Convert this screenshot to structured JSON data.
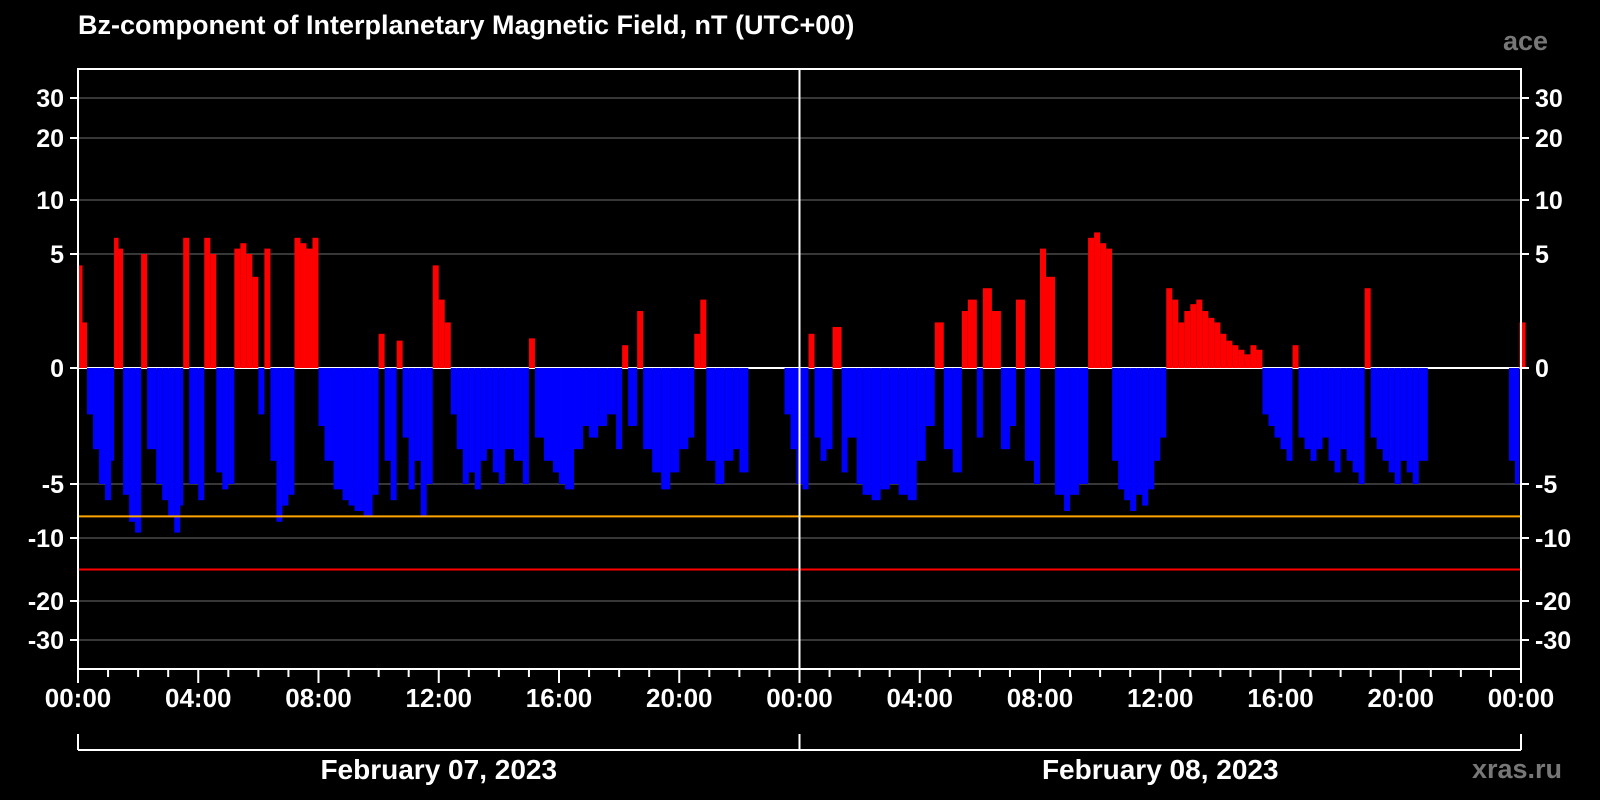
{
  "chart_data": {
    "type": "bar",
    "title": "Bz-component of Interplanetary Magnetic Field, nT (UTC+00)",
    "source_label": "ace",
    "credit": "xras.ru",
    "y_ticks": [
      30,
      20,
      10,
      5,
      0,
      -5,
      -10,
      -20,
      -30
    ],
    "y_tick_labels": [
      "30",
      "20",
      "10",
      "5",
      "0",
      "-5",
      "-10",
      "-20",
      "-30"
    ],
    "ylim": [
      -40,
      40
    ],
    "x_tick_labels": [
      "00:00",
      "04:00",
      "08:00",
      "12:00",
      "16:00",
      "20:00",
      "00:00",
      "04:00",
      "08:00",
      "12:00",
      "16:00",
      "20:00",
      "00:00"
    ],
    "x_range_hours": [
      0,
      48
    ],
    "days": [
      {
        "label": "February 07, 2023",
        "start_hour": 0,
        "end_hour": 24
      },
      {
        "label": "February 08, 2023",
        "start_hour": 24,
        "end_hour": 48
      }
    ],
    "threshold_lines": [
      {
        "value": -8,
        "color": "#ffa500"
      },
      {
        "value": -15,
        "color": "#ff0000"
      }
    ],
    "positive_color": "#ff0000",
    "negative_color": "#0000ff",
    "grid": true,
    "series": [
      {
        "values": [
          [
            0.0,
            4.5
          ],
          [
            0.15,
            2.0
          ],
          [
            0.3,
            -2.0
          ],
          [
            0.5,
            -3.5
          ],
          [
            0.7,
            -5.0
          ],
          [
            0.9,
            -6.5
          ],
          [
            1.1,
            -4.0
          ],
          [
            1.2,
            6.5
          ],
          [
            1.35,
            5.5
          ],
          [
            1.5,
            -6.0
          ],
          [
            1.7,
            -8.5
          ],
          [
            1.9,
            -9.5
          ],
          [
            2.1,
            5.0
          ],
          [
            2.3,
            -3.5
          ],
          [
            2.6,
            -5.0
          ],
          [
            2.8,
            -6.5
          ],
          [
            3.0,
            -8.0
          ],
          [
            3.2,
            -9.5
          ],
          [
            3.4,
            -7.0
          ],
          [
            3.5,
            6.5
          ],
          [
            3.7,
            -5.0
          ],
          [
            4.0,
            -6.5
          ],
          [
            4.2,
            6.5
          ],
          [
            4.4,
            5.0
          ],
          [
            4.6,
            -4.5
          ],
          [
            4.8,
            -5.5
          ],
          [
            5.0,
            -5.0
          ],
          [
            5.2,
            5.5
          ],
          [
            5.4,
            6.0
          ],
          [
            5.6,
            5.0
          ],
          [
            5.8,
            4.0
          ],
          [
            6.0,
            -2.0
          ],
          [
            6.2,
            5.5
          ],
          [
            6.4,
            -4.0
          ],
          [
            6.6,
            -8.5
          ],
          [
            6.8,
            -7.0
          ],
          [
            7.0,
            -6.0
          ],
          [
            7.2,
            6.5
          ],
          [
            7.4,
            6.0
          ],
          [
            7.6,
            5.5
          ],
          [
            7.8,
            6.5
          ],
          [
            8.0,
            -2.5
          ],
          [
            8.2,
            -4.0
          ],
          [
            8.5,
            -5.5
          ],
          [
            8.8,
            -6.5
          ],
          [
            9.0,
            -7.0
          ],
          [
            9.2,
            -7.5
          ],
          [
            9.5,
            -8.0
          ],
          [
            9.8,
            -6.0
          ],
          [
            10.0,
            1.5
          ],
          [
            10.2,
            -4.0
          ],
          [
            10.4,
            -6.5
          ],
          [
            10.6,
            1.2
          ],
          [
            10.8,
            -3.0
          ],
          [
            11.0,
            -5.5
          ],
          [
            11.2,
            -4.0
          ],
          [
            11.4,
            -8.0
          ],
          [
            11.6,
            -5.0
          ],
          [
            11.8,
            4.5
          ],
          [
            12.0,
            3.0
          ],
          [
            12.2,
            2.0
          ],
          [
            12.4,
            -2.0
          ],
          [
            12.6,
            -3.5
          ],
          [
            12.8,
            -5.0
          ],
          [
            13.0,
            -4.5
          ],
          [
            13.2,
            -5.5
          ],
          [
            13.4,
            -4.0
          ],
          [
            13.6,
            -3.5
          ],
          [
            13.8,
            -4.5
          ],
          [
            14.0,
            -5.0
          ],
          [
            14.2,
            -3.5
          ],
          [
            14.5,
            -4.0
          ],
          [
            14.8,
            -5.0
          ],
          [
            15.0,
            1.3
          ],
          [
            15.2,
            -3.0
          ],
          [
            15.5,
            -4.0
          ],
          [
            15.8,
            -4.5
          ],
          [
            16.0,
            -5.0
          ],
          [
            16.2,
            -5.5
          ],
          [
            16.5,
            -3.5
          ],
          [
            16.8,
            -2.5
          ],
          [
            17.0,
            -3.0
          ],
          [
            17.3,
            -2.5
          ],
          [
            17.6,
            -2.0
          ],
          [
            17.9,
            -3.5
          ],
          [
            18.1,
            1.0
          ],
          [
            18.3,
            -2.5
          ],
          [
            18.6,
            2.5
          ],
          [
            18.8,
            -3.5
          ],
          [
            19.1,
            -4.5
          ],
          [
            19.4,
            -5.5
          ],
          [
            19.7,
            -4.5
          ],
          [
            20.0,
            -3.5
          ],
          [
            20.3,
            -3.0
          ],
          [
            20.5,
            1.5
          ],
          [
            20.7,
            3.0
          ],
          [
            20.9,
            -4.0
          ],
          [
            21.2,
            -5.0
          ],
          [
            21.5,
            -4.0
          ],
          [
            21.8,
            -3.5
          ],
          [
            22.0,
            -4.5
          ],
          [
            23.5,
            -2.0
          ],
          [
            23.7,
            -3.5
          ],
          [
            23.9,
            -5.0
          ],
          [
            24.1,
            -5.5
          ],
          [
            24.3,
            1.5
          ],
          [
            24.5,
            -3.0
          ],
          [
            24.7,
            -4.0
          ],
          [
            24.9,
            -3.5
          ],
          [
            25.1,
            1.8
          ],
          [
            25.4,
            -4.5
          ],
          [
            25.6,
            -3.0
          ],
          [
            25.9,
            -5.0
          ],
          [
            26.1,
            -6.0
          ],
          [
            26.4,
            -6.5
          ],
          [
            26.7,
            -5.5
          ],
          [
            27.0,
            -5.0
          ],
          [
            27.3,
            -6.0
          ],
          [
            27.6,
            -6.5
          ],
          [
            27.9,
            -4.0
          ],
          [
            28.2,
            -2.5
          ],
          [
            28.5,
            2.0
          ],
          [
            28.8,
            -3.5
          ],
          [
            29.1,
            -4.5
          ],
          [
            29.4,
            2.5
          ],
          [
            29.6,
            3.0
          ],
          [
            29.9,
            -3.0
          ],
          [
            30.1,
            3.5
          ],
          [
            30.4,
            2.5
          ],
          [
            30.7,
            -3.5
          ],
          [
            31.0,
            -2.5
          ],
          [
            31.2,
            3.0
          ],
          [
            31.5,
            -4.0
          ],
          [
            31.8,
            -5.0
          ],
          [
            32.0,
            5.5
          ],
          [
            32.2,
            4.0
          ],
          [
            32.5,
            -6.0
          ],
          [
            32.8,
            -7.5
          ],
          [
            33.0,
            -6.0
          ],
          [
            33.3,
            -5.0
          ],
          [
            33.6,
            6.5
          ],
          [
            33.8,
            7.0
          ],
          [
            34.0,
            6.0
          ],
          [
            34.2,
            5.5
          ],
          [
            34.4,
            -4.0
          ],
          [
            34.6,
            -5.5
          ],
          [
            34.8,
            -6.5
          ],
          [
            35.0,
            -7.5
          ],
          [
            35.2,
            -6.0
          ],
          [
            35.4,
            -7.0
          ],
          [
            35.6,
            -5.5
          ],
          [
            35.8,
            -4.0
          ],
          [
            36.0,
            -3.0
          ],
          [
            36.2,
            3.5
          ],
          [
            36.4,
            3.0
          ],
          [
            36.6,
            2.0
          ],
          [
            36.8,
            2.5
          ],
          [
            37.0,
            2.8
          ],
          [
            37.2,
            3.0
          ],
          [
            37.4,
            2.5
          ],
          [
            37.6,
            2.2
          ],
          [
            37.8,
            2.0
          ],
          [
            38.0,
            1.5
          ],
          [
            38.2,
            1.2
          ],
          [
            38.4,
            1.0
          ],
          [
            38.6,
            0.8
          ],
          [
            38.8,
            0.6
          ],
          [
            39.0,
            1.0
          ],
          [
            39.2,
            0.8
          ],
          [
            39.4,
            -2.0
          ],
          [
            39.6,
            -2.5
          ],
          [
            39.8,
            -3.0
          ],
          [
            40.0,
            -3.5
          ],
          [
            40.2,
            -4.0
          ],
          [
            40.4,
            1.0
          ],
          [
            40.6,
            -3.0
          ],
          [
            40.8,
            -3.5
          ],
          [
            41.0,
            -4.0
          ],
          [
            41.2,
            -3.5
          ],
          [
            41.4,
            -3.0
          ],
          [
            41.6,
            -4.0
          ],
          [
            41.8,
            -4.5
          ],
          [
            42.0,
            -3.5
          ],
          [
            42.2,
            -4.0
          ],
          [
            42.4,
            -4.5
          ],
          [
            42.6,
            -5.0
          ],
          [
            42.8,
            3.5
          ],
          [
            43.0,
            -3.0
          ],
          [
            43.2,
            -3.5
          ],
          [
            43.4,
            -4.0
          ],
          [
            43.6,
            -4.5
          ],
          [
            43.8,
            -5.0
          ],
          [
            44.0,
            -4.0
          ],
          [
            44.2,
            -4.5
          ],
          [
            44.4,
            -5.0
          ],
          [
            44.6,
            -4.0
          ],
          [
            47.6,
            -4.0
          ],
          [
            47.8,
            -5.0
          ],
          [
            47.95,
            2.0
          ]
        ]
      }
    ]
  }
}
